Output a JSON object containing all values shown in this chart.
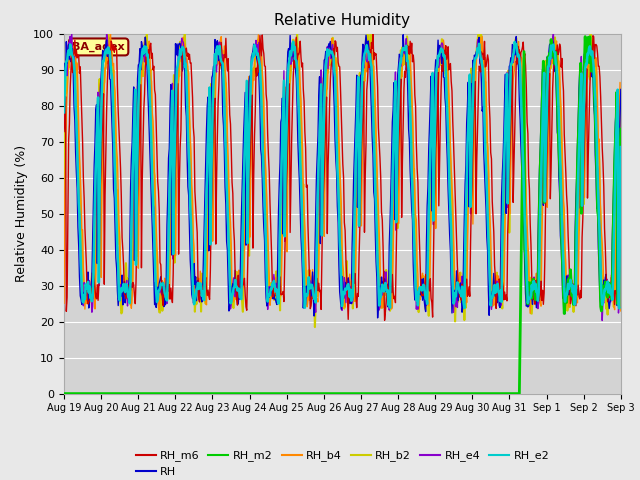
{
  "title": "Relative Humidity",
  "ylabel": "Relative Humidity (%)",
  "ylim": [
    0,
    100
  ],
  "yticks": [
    0,
    10,
    20,
    30,
    40,
    50,
    60,
    70,
    80,
    90,
    100
  ],
  "background_color": "#e8e8e8",
  "plot_bg_color": "#d3d3d3",
  "annotation_text": "BA_adex",
  "annotation_color": "#8b0000",
  "annotation_bg": "#ffff99",
  "series": {
    "RH_m6": {
      "color": "#cc0000",
      "lw": 1.0,
      "zorder": 5
    },
    "RH": {
      "color": "#0000cc",
      "lw": 1.0,
      "zorder": 5
    },
    "RH_m2": {
      "color": "#00cc00",
      "lw": 2.0,
      "zorder": 6
    },
    "RH_b4": {
      "color": "#ff8800",
      "lw": 1.0,
      "zorder": 5
    },
    "RH_b2": {
      "color": "#cccc00",
      "lw": 1.5,
      "zorder": 4
    },
    "RH_e4": {
      "color": "#8800cc",
      "lw": 1.0,
      "zorder": 5
    },
    "RH_e2": {
      "color": "#00cccc",
      "lw": 1.8,
      "zorder": 7
    }
  },
  "xtick_labels": [
    "Aug 19",
    "Aug 20",
    "Aug 21",
    "Aug 22",
    "Aug 23",
    "Aug 24",
    "Aug 25",
    "Aug 26",
    "Aug 27",
    "Aug 28",
    "Aug 29",
    "Aug 30",
    "Aug 31",
    "Sep 1",
    "Sep 2",
    "Sep 3"
  ],
  "xtick_positions": [
    0,
    1,
    2,
    3,
    4,
    5,
    6,
    7,
    8,
    9,
    10,
    11,
    12,
    13,
    14,
    15
  ]
}
